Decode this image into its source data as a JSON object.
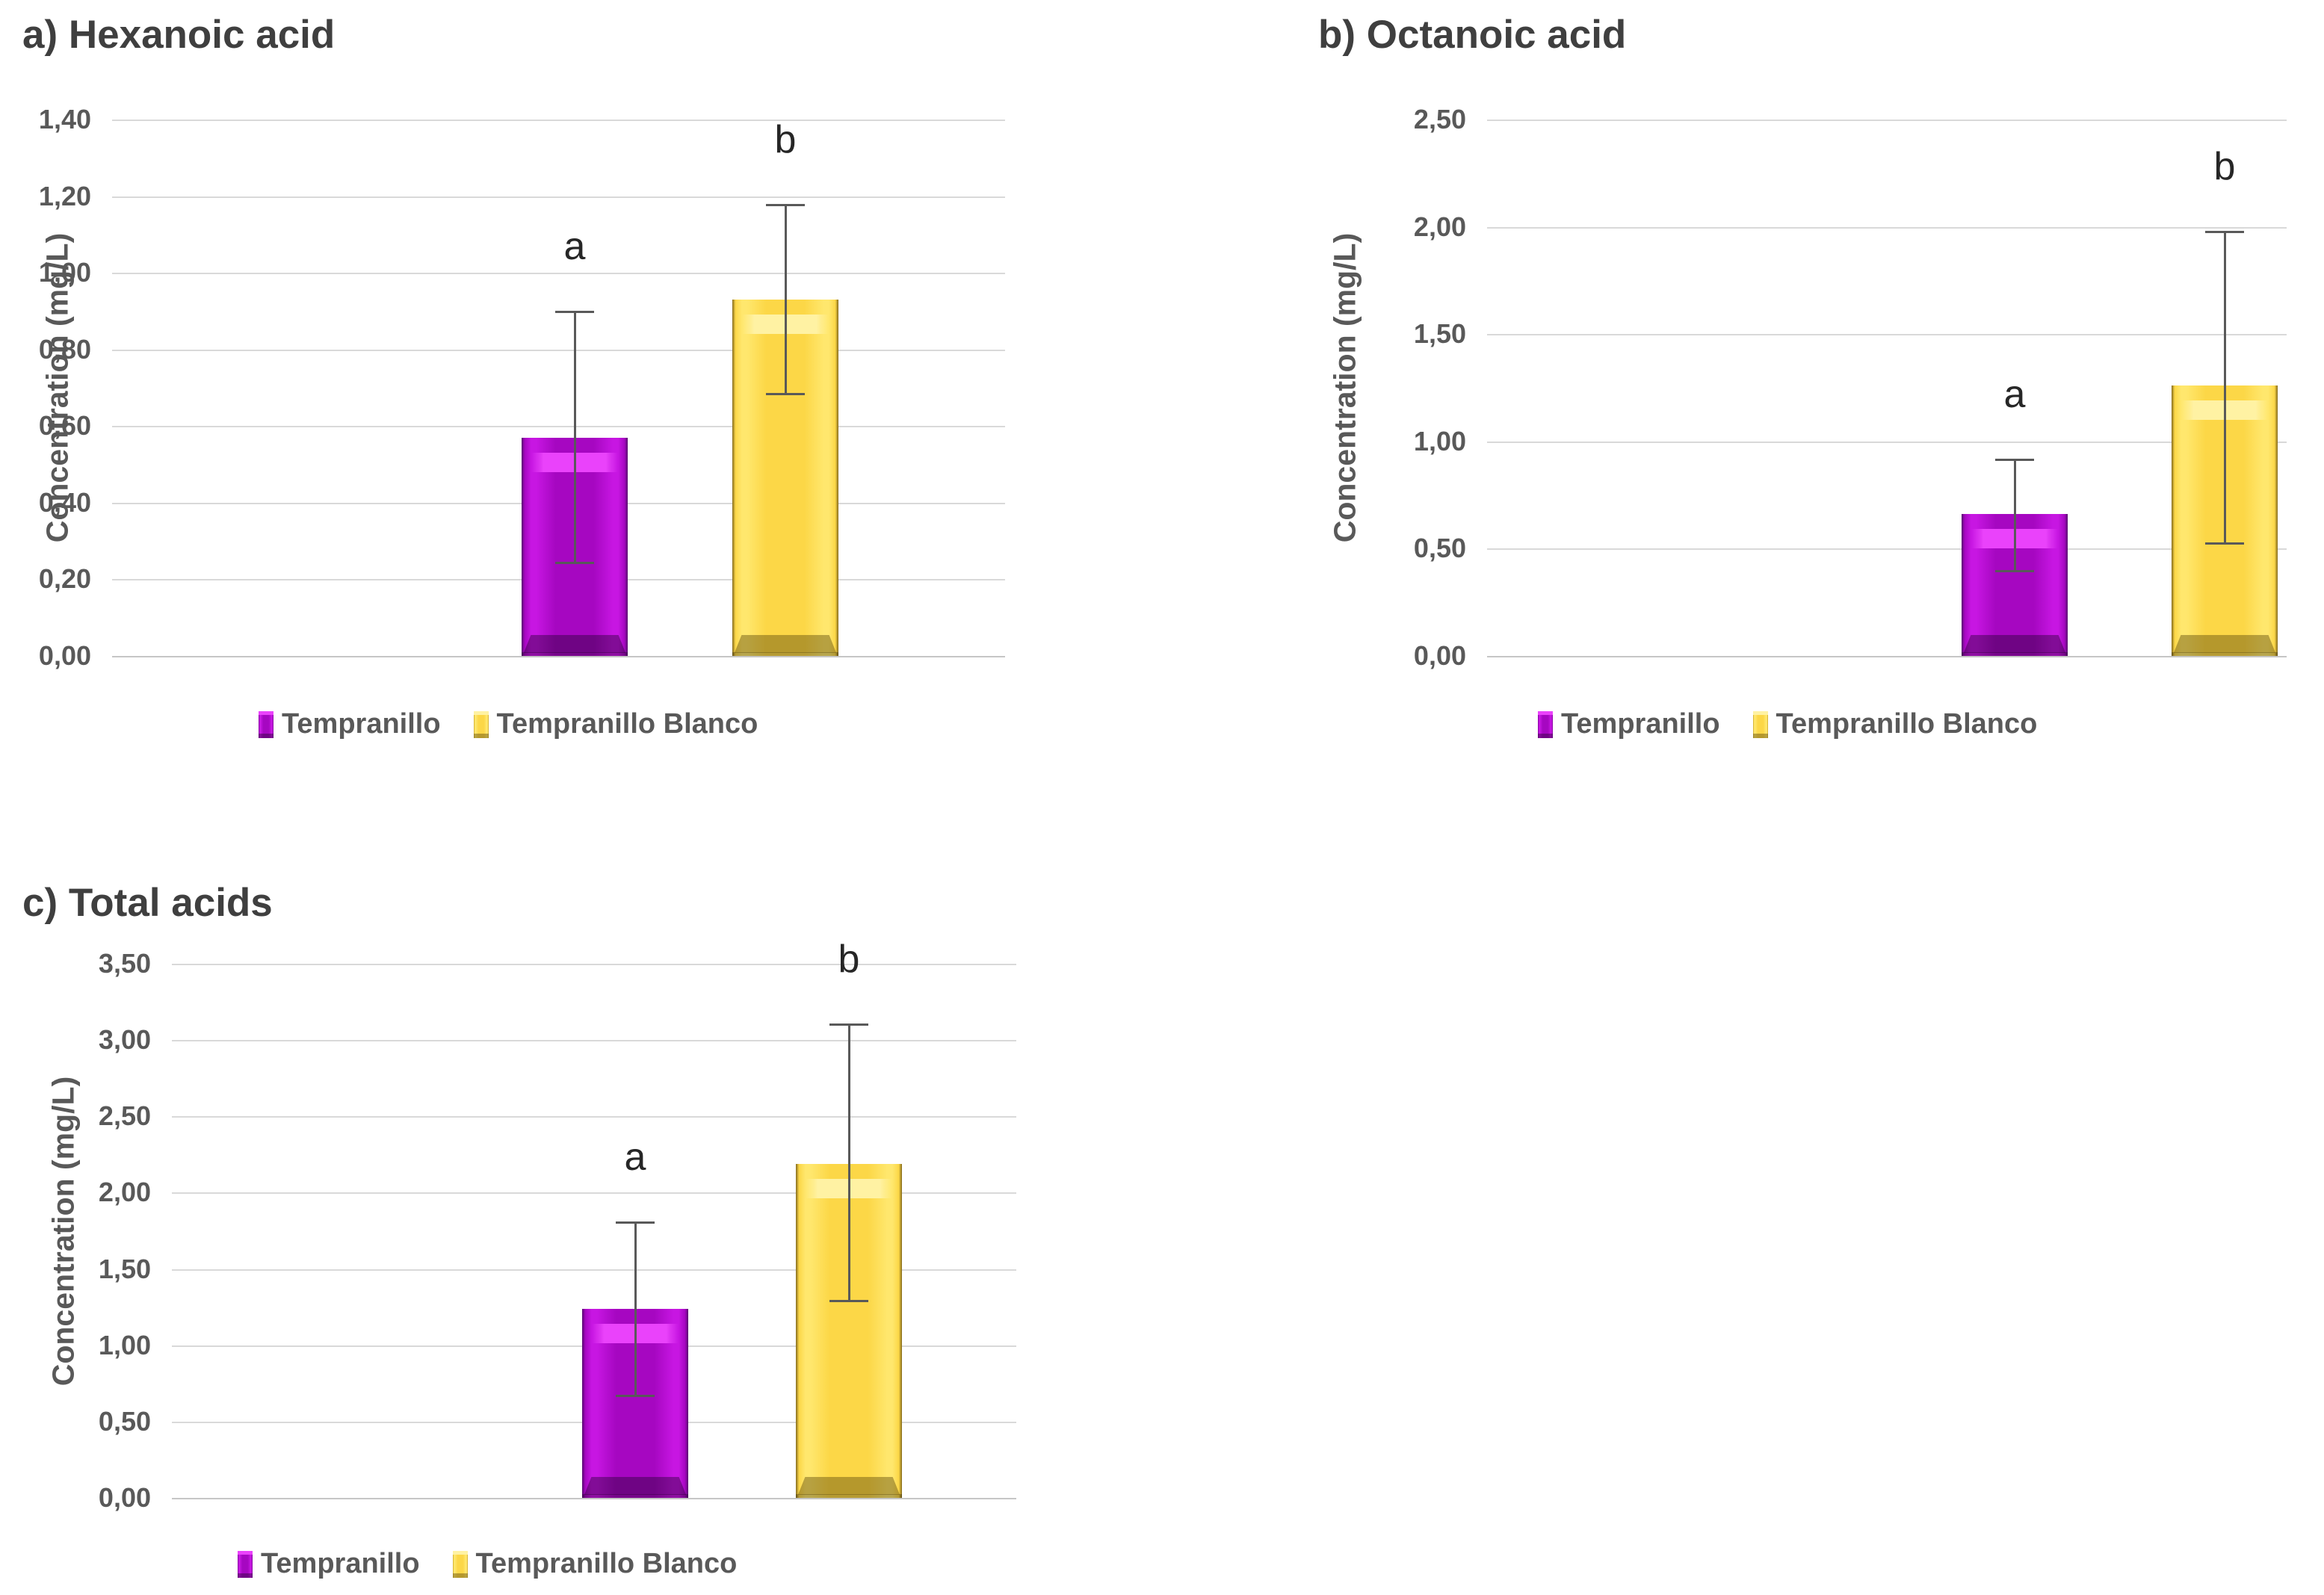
{
  "figure_background": "#ffffff",
  "grid_color": "#d9d9d9",
  "zero_line_color": "#c6c6c6",
  "error_bar_color": "#595959",
  "title_color": "#3f3f3f",
  "tick_color": "#595959",
  "letter_color": "#262626",
  "legend_text_color": "#595959",
  "palette": {
    "tempranillo": {
      "edge": "#56086e",
      "mid": "#a607c1",
      "bright": "#c716e2",
      "highlight": "#ea42fb",
      "shade": "rgba(35,0,48,0.42)"
    },
    "tempranillo_blanco": {
      "edge": "#83691b",
      "mid": "#fcd747",
      "bright": "#ffe76d",
      "highlight": "#fff2a3",
      "shade": "rgba(95,76,12,0.45)"
    }
  },
  "chart_data": [
    {
      "type": "bar",
      "id": "a",
      "title": "a) Hexanoic acid",
      "ylabel": "Concentration (mg/L)",
      "ylim": [
        0,
        1.4
      ],
      "ystep": 0.2,
      "grid": true,
      "legend_position": "bottom",
      "decimal_separator": ",",
      "ticks": [
        "0,00",
        "0,20",
        "0,40",
        "0,60",
        "0,80",
        "1,00",
        "1,20",
        "1,40"
      ],
      "categories": [
        "Tempranillo",
        "Tempranillo Blanco"
      ],
      "series": [
        {
          "name": "Tempranillo",
          "color_key": "tempranillo",
          "value": 0.57,
          "err_low": 0.24,
          "err_high": 0.9,
          "letter": "a"
        },
        {
          "name": "Tempranillo Blanco",
          "color_key": "tempranillo_blanco",
          "value": 0.93,
          "err_low": 0.68,
          "err_high": 1.18,
          "letter": "b"
        }
      ]
    },
    {
      "type": "bar",
      "id": "b",
      "title": "b) Octanoic acid",
      "ylabel": "Concentration (mg/L)",
      "ylim": [
        0,
        2.5
      ],
      "ystep": 0.5,
      "grid": true,
      "legend_position": "bottom",
      "decimal_separator": ",",
      "ticks": [
        "0,00",
        "0,50",
        "1,00",
        "1,50",
        "2,00",
        "2,50"
      ],
      "categories": [
        "Tempranillo",
        "Tempranillo Blanco"
      ],
      "series": [
        {
          "name": "Tempranillo",
          "color_key": "tempranillo",
          "value": 0.66,
          "err_low": 0.39,
          "err_high": 0.92,
          "letter": "a"
        },
        {
          "name": "Tempranillo Blanco",
          "color_key": "tempranillo_blanco",
          "value": 1.26,
          "err_low": 0.52,
          "err_high": 1.98,
          "letter": "b"
        }
      ]
    },
    {
      "type": "bar",
      "id": "c",
      "title": "c) Total acids",
      "ylabel": "Concentration (mg/L)",
      "ylim": [
        0,
        3.5
      ],
      "ystep": 0.5,
      "grid": true,
      "legend_position": "bottom",
      "decimal_separator": ",",
      "ticks": [
        "0,00",
        "0,50",
        "1,00",
        "1,50",
        "2,00",
        "2,50",
        "3,00",
        "3,50"
      ],
      "categories": [
        "Tempranillo",
        "Tempranillo Blanco"
      ],
      "series": [
        {
          "name": "Tempranillo",
          "color_key": "tempranillo",
          "value": 1.24,
          "err_low": 0.66,
          "err_high": 1.81,
          "letter": "a"
        },
        {
          "name": "Tempranillo Blanco",
          "color_key": "tempranillo_blanco",
          "value": 2.19,
          "err_low": 1.28,
          "err_high": 3.11,
          "letter": "b"
        }
      ]
    }
  ]
}
